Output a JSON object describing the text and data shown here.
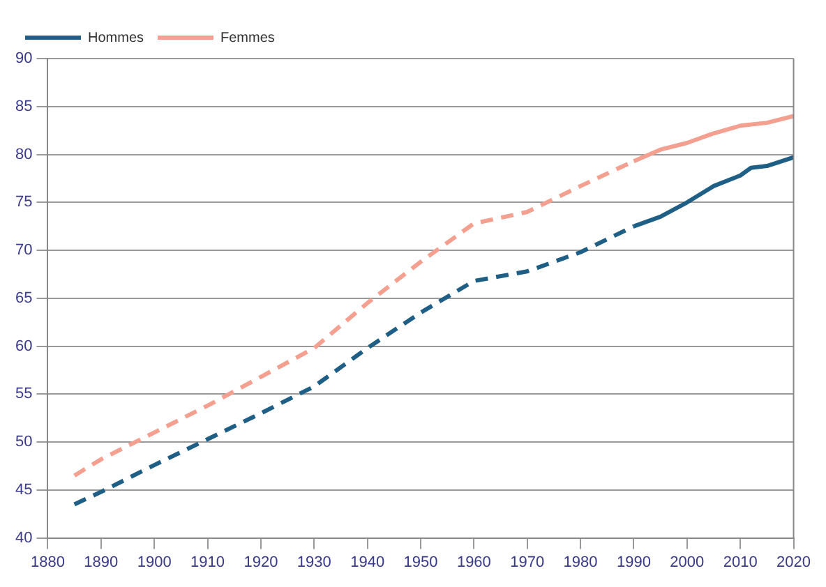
{
  "chart_data": {
    "type": "line",
    "xlim": [
      1880,
      2020
    ],
    "xticks": [
      1880,
      1890,
      1900,
      1910,
      1920,
      1930,
      1940,
      1950,
      1960,
      1970,
      1980,
      1990,
      2000,
      2010,
      2020
    ],
    "ylim": [
      40,
      90
    ],
    "yticks": [
      40,
      45,
      50,
      55,
      60,
      65,
      70,
      75,
      80,
      85,
      90
    ],
    "grid": "y",
    "legend": "top left",
    "marker": "none",
    "series": [
      {
        "name": "Hommes",
        "color": "#1f5f86",
        "line_style": "solid",
        "x": [
          1990,
          1995,
          2000,
          2005,
          2010,
          2012,
          2015,
          2020
        ],
        "values": [
          72.5,
          73.5,
          75,
          76.7,
          77.8,
          78.6,
          78.8,
          79.7
        ]
      },
      {
        "color": "#1f5f86",
        "line_style": "dashed",
        "x": [
          1885,
          1890,
          1900,
          1910,
          1920,
          1930,
          1940,
          1950,
          1960,
          1970,
          1980,
          1990
        ],
        "values": [
          43.5,
          44.8,
          47.6,
          50.3,
          53,
          55.8,
          59.8,
          63.5,
          66.8,
          67.8,
          69.8,
          72.5
        ]
      },
      {
        "name": "Femmes",
        "color": "#f4a090",
        "line_style": "dashed",
        "x": [
          1885,
          1890,
          1900,
          1910,
          1920,
          1930,
          1940,
          1950,
          1960,
          1970,
          1980,
          1990
        ],
        "values": [
          46.5,
          48.2,
          51,
          53.8,
          56.8,
          59.8,
          64.5,
          68.8,
          72.8,
          74,
          76.7,
          79.3
        ]
      },
      {
        "color": "#f4a090",
        "line_style": "solid",
        "x": [
          1990,
          1995,
          2000,
          2005,
          2010,
          2015,
          2020
        ],
        "values": [
          79.3,
          80.5,
          81.2,
          82.2,
          83,
          83.3,
          84
        ]
      }
    ]
  }
}
